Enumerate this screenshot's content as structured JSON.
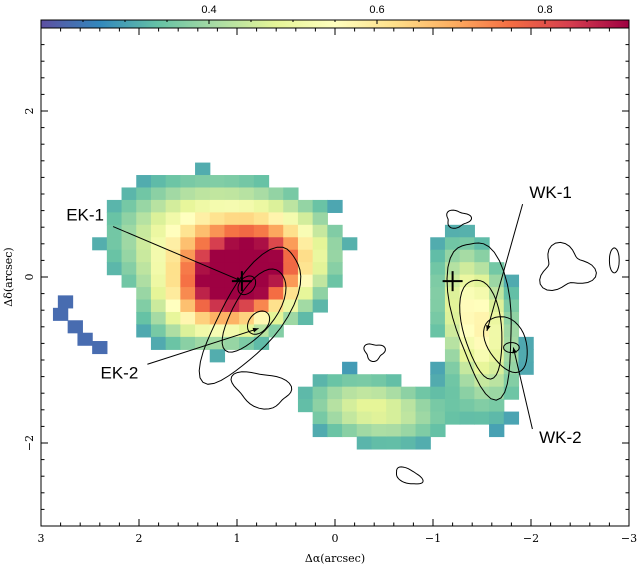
{
  "chart_data": {
    "type": "heatmap",
    "title": "",
    "xlabel": "Δα(arcsec)",
    "ylabel": "Δδ(arcsec)",
    "xlim": [
      3,
      -3
    ],
    "ylim": [
      -3,
      3
    ],
    "x_ticks": [
      3,
      2,
      1,
      0,
      -1,
      -2,
      -3
    ],
    "x_tick_labels": [
      "3",
      "2",
      "1",
      "0",
      "−1",
      "−2",
      "−3"
    ],
    "y_ticks": [
      2,
      0,
      -2
    ],
    "y_tick_labels": [
      "2",
      "0",
      "−2"
    ],
    "colorbar": {
      "range": [
        0.2,
        0.9
      ],
      "ticks": [
        0.4,
        0.6,
        0.8
      ],
      "tick_labels": [
        "0.4",
        "0.6",
        "0.8"
      ],
      "colormap": [
        "#5e4fa2",
        "#3288bd",
        "#66c2a5",
        "#abdda4",
        "#e6f598",
        "#ffffbf",
        "#fee08b",
        "#fdae61",
        "#f46d43",
        "#d53e4f",
        "#9e0142"
      ]
    },
    "grid": {
      "pixel_size_arcsec": 0.15,
      "value_peak": 0.9,
      "components": [
        {
          "name": "east-core",
          "center": [
            0.95,
            -0.05
          ],
          "sigma_major": 0.55,
          "sigma_minor": 0.38,
          "angle_deg": -35,
          "amplitude": 0.75,
          "floor": 0.15
        },
        {
          "name": "east-extension",
          "center": [
            1.3,
            0.5
          ],
          "sigma_major": 0.7,
          "sigma_minor": 0.5,
          "angle_deg": 0,
          "amplitude": 0.35,
          "floor": 0
        },
        {
          "name": "west-arc",
          "center": [
            -1.45,
            -0.55
          ],
          "sigma_major": 0.7,
          "sigma_minor": 0.28,
          "angle_deg": 80,
          "amplitude": 0.38,
          "floor": 0
        },
        {
          "name": "south-bridge",
          "center": [
            -0.4,
            -1.6
          ],
          "sigma_major": 0.55,
          "sigma_minor": 0.3,
          "angle_deg": 10,
          "amplitude": 0.28,
          "floor": 0
        }
      ]
    },
    "crosses": [
      {
        "name": "east-nucleus",
        "x": 0.95,
        "y": -0.05
      },
      {
        "name": "west-nucleus",
        "x": -1.2,
        "y": -0.05
      }
    ],
    "annotations": [
      {
        "label": "EK-1",
        "text_x": 2.55,
        "text_y": 0.68,
        "target_x": 0.95,
        "target_y": -0.05
      },
      {
        "label": "EK-2",
        "text_x": 2.2,
        "text_y": -1.22,
        "target_x": 0.78,
        "target_y": -0.62
      },
      {
        "label": "WK-1",
        "text_x": -2.2,
        "text_y": 0.95,
        "target_x": -1.55,
        "target_y": -0.65
      },
      {
        "label": "WK-2",
        "text_x": -2.3,
        "text_y": -2.0,
        "target_x": -1.82,
        "target_y": -0.85
      }
    ]
  }
}
